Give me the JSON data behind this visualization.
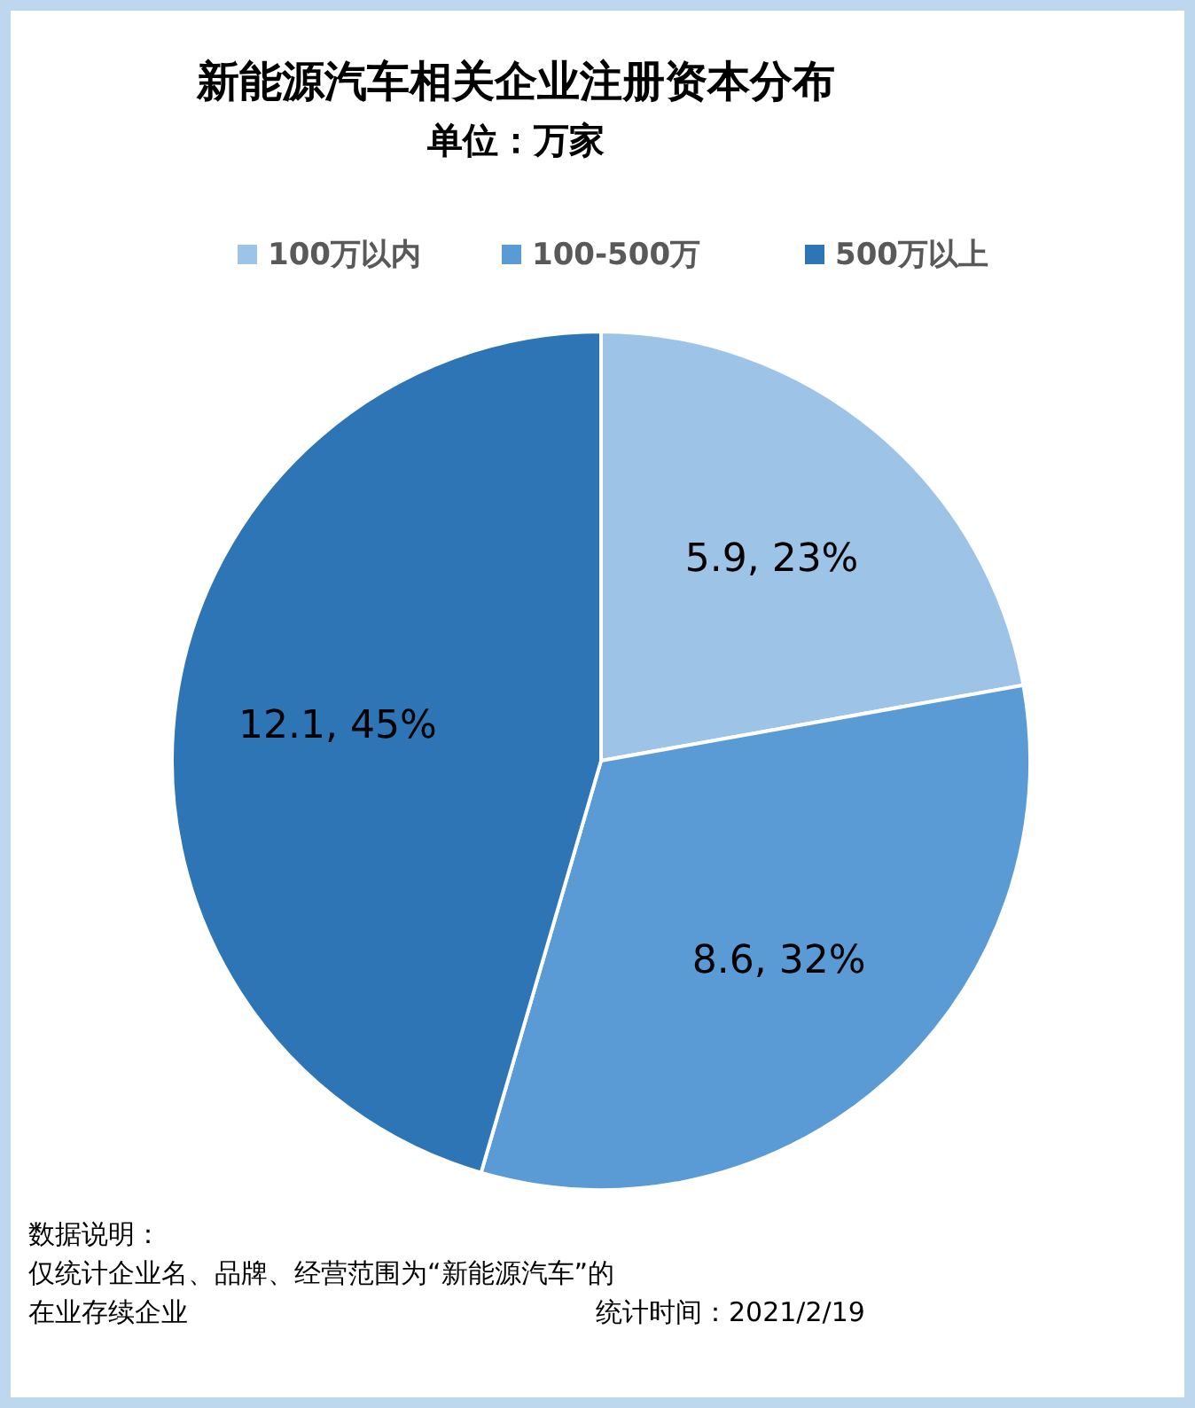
{
  "chart_data": {
    "type": "pie",
    "title": "新能源汽车相关企业注册资本分布",
    "subtitle": "单位：万家",
    "categories": [
      "100万以内",
      "100-500万",
      "500万以上"
    ],
    "values": [
      5.9,
      8.6,
      12.1
    ],
    "colors": [
      "#9dc3e6",
      "#5b9bd5",
      "#2e75b6"
    ],
    "value_labels": [
      "5.9, 23%",
      "8.6, 32%",
      "12.1, 45%"
    ],
    "legend": "top",
    "annotations": [
      "数据说明：",
      "仅统计企业名、品牌、经营范围为“新能源汽车”的在业存续企业",
      "统计时间：2021/2/19"
    ]
  }
}
